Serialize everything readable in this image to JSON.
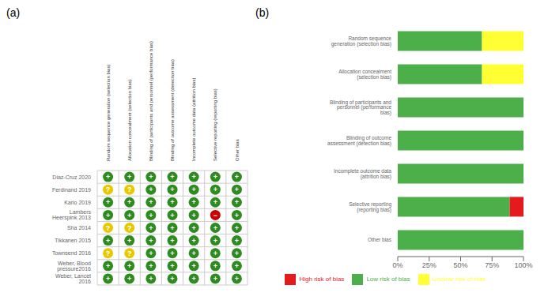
{
  "chart_data": [
    {
      "type": "heatmap",
      "title": "(a)",
      "categories": [
        "Diaz-Cruz 2020",
        "Ferdinand 2019",
        "Kario 2019",
        "Lambers Heerspink 2013",
        "Sha 2014",
        "Tikkanen 2015",
        "Townsend 2016",
        "Weber, Blood pressure2016",
        "Weber, Lancet 2016"
      ],
      "x": [
        "Random sequence generation (selection bias)",
        "Allocation concealment (selection bias)",
        "Blinding of participants and personnel (performance bias)",
        "Blinding of outcome assessment (detection bias)",
        "Incomplete outcome data (attrition bias)",
        "Selective reporting (reporting bias)",
        "Other bias"
      ],
      "cells": [
        [
          "+",
          "+",
          "+",
          "+",
          "+",
          "+",
          "+"
        ],
        [
          "?",
          "?",
          "+",
          "+",
          "+",
          "+",
          "+"
        ],
        [
          "+",
          "+",
          "+",
          "+",
          "+",
          "+",
          "+"
        ],
        [
          "+",
          "+",
          "+",
          "+",
          "+",
          "−",
          "+"
        ],
        [
          "?",
          "?",
          "+",
          "+",
          "+",
          "+",
          "+"
        ],
        [
          "+",
          "+",
          "+",
          "+",
          "+",
          "+",
          "+"
        ],
        [
          "?",
          "?",
          "+",
          "+",
          "+",
          "+",
          "+"
        ],
        [
          "+",
          "+",
          "+",
          "+",
          "+",
          "+",
          "+"
        ],
        [
          "+",
          "+",
          "+",
          "+",
          "+",
          "+",
          "+"
        ]
      ],
      "symbols": [
        "+",
        "?",
        "−"
      ],
      "colors": [
        "#2e8b20",
        "#e8c800",
        "#cc0000"
      ],
      "grid": true
    },
    {
      "type": "bar",
      "title": "(b)",
      "orientation": "horizontal",
      "stacked": true,
      "categories": [
        "Random sequence generation (selection bias)",
        "Allocation concealment (selection bias)",
        "Blinding of participants and personnel (performance bias)",
        "Blinding of outcome assessment (detection bias)",
        "Incomplete outcome data (attrition bias)",
        "Selective reporting (reporting bias)",
        "Other bias"
      ],
      "series": [
        {
          "name": "Low risk of bias",
          "color": "#4daf4a",
          "values": [
            67,
            67,
            100,
            100,
            100,
            89,
            100
          ]
        },
        {
          "name": "Unclear risk of bias",
          "color": "#ffff33",
          "values": [
            33,
            33,
            0,
            0,
            0,
            0,
            0
          ]
        },
        {
          "name": "High risk of bias",
          "color": "#e41a1c",
          "values": [
            0,
            0,
            0,
            0,
            0,
            11,
            0
          ]
        }
      ],
      "xlim": [
        0,
        100
      ],
      "xticks": [
        {
          "value": 0,
          "label": "0%"
        },
        {
          "value": 25,
          "label": "25%"
        },
        {
          "value": 50,
          "label": "50%"
        },
        {
          "value": 75,
          "label": "75%"
        },
        {
          "value": 100,
          "label": "100%"
        }
      ],
      "legend": "bottom",
      "grid": false
    }
  ]
}
